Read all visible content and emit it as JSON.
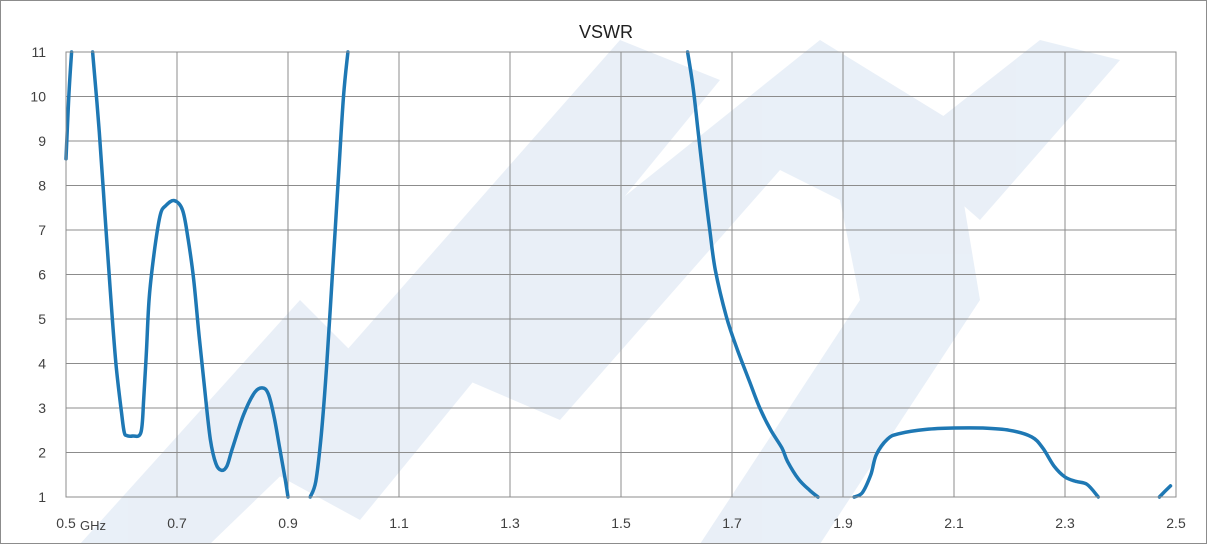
{
  "chart_data": {
    "type": "line",
    "title": "VSWR",
    "x_unit": "GHz",
    "xlim": [
      0.5,
      2.5
    ],
    "ylim": [
      1,
      11
    ],
    "x_ticks": [
      "0.5",
      "0.7",
      "0.9",
      "1.1",
      "1.3",
      "1.5",
      "1.7",
      "1.9",
      "2.1",
      "2.3",
      "2.5"
    ],
    "y_ticks": [
      "1",
      "2",
      "3",
      "4",
      "5",
      "6",
      "7",
      "8",
      "9",
      "10",
      "11"
    ],
    "grid": true,
    "series": [
      {
        "color": "#1e78b4",
        "segments": [
          [
            [
              0.5,
              8.6
            ],
            [
              0.505,
              10.0
            ],
            [
              0.51,
              11.0
            ]
          ],
          [
            [
              0.548,
              11.0
            ],
            [
              0.56,
              9.2
            ],
            [
              0.57,
              7.4
            ],
            [
              0.58,
              5.6
            ],
            [
              0.59,
              4.0
            ],
            [
              0.6,
              2.9
            ],
            [
              0.605,
              2.45
            ],
            [
              0.61,
              2.38
            ],
            [
              0.62,
              2.37
            ],
            [
              0.635,
              2.45
            ],
            [
              0.64,
              3.2
            ],
            [
              0.645,
              4.3
            ],
            [
              0.65,
              5.5
            ],
            [
              0.66,
              6.6
            ],
            [
              0.67,
              7.35
            ],
            [
              0.68,
              7.55
            ],
            [
              0.695,
              7.66
            ],
            [
              0.71,
              7.45
            ],
            [
              0.72,
              6.8
            ],
            [
              0.73,
              5.9
            ],
            [
              0.74,
              4.6
            ],
            [
              0.75,
              3.4
            ],
            [
              0.76,
              2.3
            ],
            [
              0.77,
              1.75
            ],
            [
              0.78,
              1.6
            ],
            [
              0.79,
              1.7
            ],
            [
              0.8,
              2.1
            ],
            [
              0.82,
              2.85
            ],
            [
              0.84,
              3.35
            ],
            [
              0.855,
              3.45
            ],
            [
              0.865,
              3.3
            ],
            [
              0.875,
              2.8
            ],
            [
              0.885,
              2.1
            ],
            [
              0.895,
              1.4
            ],
            [
              0.9,
              1.0
            ]
          ],
          [
            [
              0.94,
              1.0
            ],
            [
              0.95,
              1.35
            ],
            [
              0.96,
              2.4
            ],
            [
              0.97,
              4.0
            ],
            [
              0.98,
              6.0
            ],
            [
              0.99,
              8.0
            ],
            [
              1.0,
              10.0
            ],
            [
              1.008,
              11.0
            ]
          ],
          [
            [
              1.62,
              11.0
            ],
            [
              1.63,
              10.2
            ],
            [
              1.64,
              9.1
            ],
            [
              1.65,
              8.0
            ],
            [
              1.66,
              7.0
            ],
            [
              1.67,
              6.1
            ],
            [
              1.69,
              5.05
            ],
            [
              1.71,
              4.3
            ],
            [
              1.73,
              3.65
            ],
            [
              1.75,
              3.0
            ],
            [
              1.77,
              2.5
            ],
            [
              1.79,
              2.1
            ],
            [
              1.8,
              1.8
            ],
            [
              1.82,
              1.4
            ],
            [
              1.84,
              1.15
            ],
            [
              1.855,
              1.0
            ]
          ],
          [
            [
              1.92,
              1.0
            ],
            [
              1.935,
              1.1
            ],
            [
              1.95,
              1.5
            ],
            [
              1.96,
              1.95
            ],
            [
              1.98,
              2.3
            ],
            [
              2.0,
              2.42
            ],
            [
              2.05,
              2.52
            ],
            [
              2.1,
              2.55
            ],
            [
              2.15,
              2.55
            ],
            [
              2.2,
              2.5
            ],
            [
              2.24,
              2.35
            ],
            [
              2.26,
              2.1
            ],
            [
              2.28,
              1.7
            ],
            [
              2.3,
              1.45
            ],
            [
              2.32,
              1.35
            ],
            [
              2.34,
              1.28
            ],
            [
              2.36,
              1.0
            ]
          ],
          [
            [
              2.47,
              1.0
            ],
            [
              2.49,
              1.25
            ]
          ]
        ]
      }
    ]
  }
}
